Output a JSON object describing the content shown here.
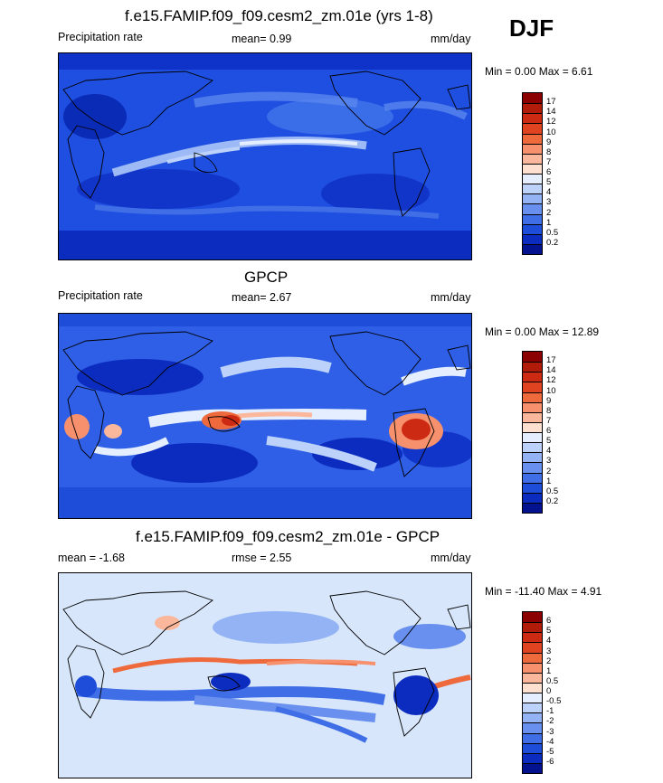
{
  "header": {
    "season": "DJF"
  },
  "panels": [
    {
      "title": "f.e15.FAMIP.f09_f09.cesm2_zm.01e (yrs 1-8)",
      "left_label": "Precipitation rate",
      "center_label": "mean=   0.99",
      "units": "mm/day",
      "minmax": "Min =   0.00 Max =   6.61",
      "map_fill": "#1f4fe0",
      "colorbar": {
        "labels": [
          "17",
          "14",
          "12",
          "10",
          "9",
          "8",
          "7",
          "6",
          "5",
          "4",
          "3",
          "2",
          "1",
          "0.5",
          "0.2"
        ],
        "colors": [
          "#8b0000",
          "#b01b0a",
          "#cc2a12",
          "#e0431f",
          "#ee6a3c",
          "#f7906c",
          "#fbb79b",
          "#fde0cf",
          "#e4eeff",
          "#bcd2fb",
          "#93b3f5",
          "#6990ef",
          "#3f6ee6",
          "#1e4ed9",
          "#0c2cc0",
          "#03128f"
        ]
      }
    },
    {
      "title": "GPCP",
      "left_label": "Precipitation rate",
      "center_label": "mean=   2.67",
      "units": "mm/day",
      "minmax": "Min =   0.00 Max =  12.89",
      "map_fill": "#2e5fe6",
      "colorbar": {
        "labels": [
          "17",
          "14",
          "12",
          "10",
          "9",
          "8",
          "7",
          "6",
          "5",
          "4",
          "3",
          "2",
          "1",
          "0.5",
          "0.2"
        ],
        "colors": [
          "#8b0000",
          "#b01b0a",
          "#cc2a12",
          "#e0431f",
          "#ee6a3c",
          "#f7906c",
          "#fbb79b",
          "#fde0cf",
          "#e4eeff",
          "#bcd2fb",
          "#93b3f5",
          "#6990ef",
          "#3f6ee6",
          "#1e4ed9",
          "#0c2cc0",
          "#03128f"
        ]
      }
    },
    {
      "title": "f.e15.FAMIP.f09_f09.cesm2_zm.01e - GPCP",
      "left_label": "mean =  -1.68",
      "center_label": "rmse =   2.55",
      "units": "mm/day",
      "minmax": "Min = -11.40 Max =   4.91",
      "map_fill": "#d7e6fb",
      "colorbar": {
        "labels": [
          "6",
          "5",
          "4",
          "3",
          "2",
          "1",
          "0.5",
          "0",
          "-0.5",
          "-1",
          "-2",
          "-3",
          "-4",
          "-5",
          "-6"
        ],
        "colors": [
          "#8b0000",
          "#b01b0a",
          "#cc2a12",
          "#e0431f",
          "#ee6a3c",
          "#f7906c",
          "#fbb79b",
          "#fde0cf",
          "#e4eeff",
          "#bcd2fb",
          "#93b3f5",
          "#6990ef",
          "#3f6ee6",
          "#1e4ed9",
          "#0c2cc0",
          "#03128f"
        ]
      }
    }
  ]
}
